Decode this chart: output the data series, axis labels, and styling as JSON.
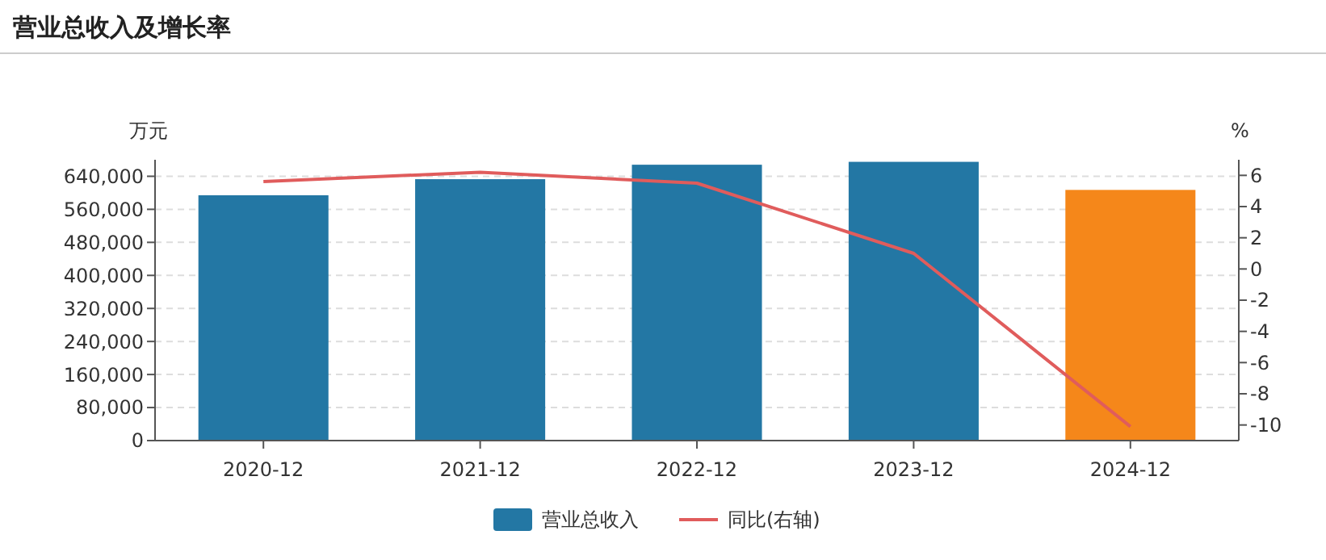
{
  "chart_data": {
    "type": "bar",
    "title": "营业总收入及增长率",
    "ylabel": "万元",
    "y2label": "%",
    "categories": [
      "2020-12",
      "2021-12",
      "2022-12",
      "2023-12",
      "2024-12"
    ],
    "series": [
      {
        "name": "营业总收入",
        "color": "#2377a4",
        "colors": [
          "#2377a4",
          "#2377a4",
          "#2377a4",
          "#2377a4",
          "#f5871a"
        ],
        "values": [
          594000,
          633000,
          668000,
          675000,
          607000
        ]
      },
      {
        "name": "同比(右轴)",
        "type": "line",
        "axis": "y2",
        "color": "#e05c5c",
        "values": [
          5.6,
          6.2,
          5.5,
          1.0,
          -10.1
        ]
      }
    ],
    "ylim": [
      0,
      680000
    ],
    "yticks": [
      {
        "value": 0,
        "label": "0"
      },
      {
        "value": 80000,
        "label": "80,000"
      },
      {
        "value": 160000,
        "label": "160,000"
      },
      {
        "value": 240000,
        "label": "240,000"
      },
      {
        "value": 320000,
        "label": "320,000"
      },
      {
        "value": 400000,
        "label": "400,000"
      },
      {
        "value": 480000,
        "label": "480,000"
      },
      {
        "value": 560000,
        "label": "560,000"
      },
      {
        "value": 640000,
        "label": "640,000"
      }
    ],
    "y2lim": [
      -11,
      7
    ],
    "y2ticks": [
      -10,
      -8,
      -6,
      -4,
      -2,
      0,
      2,
      4,
      6
    ],
    "grid": "y",
    "legend": "bottom",
    "marker": "none",
    "line_style": "solid"
  }
}
